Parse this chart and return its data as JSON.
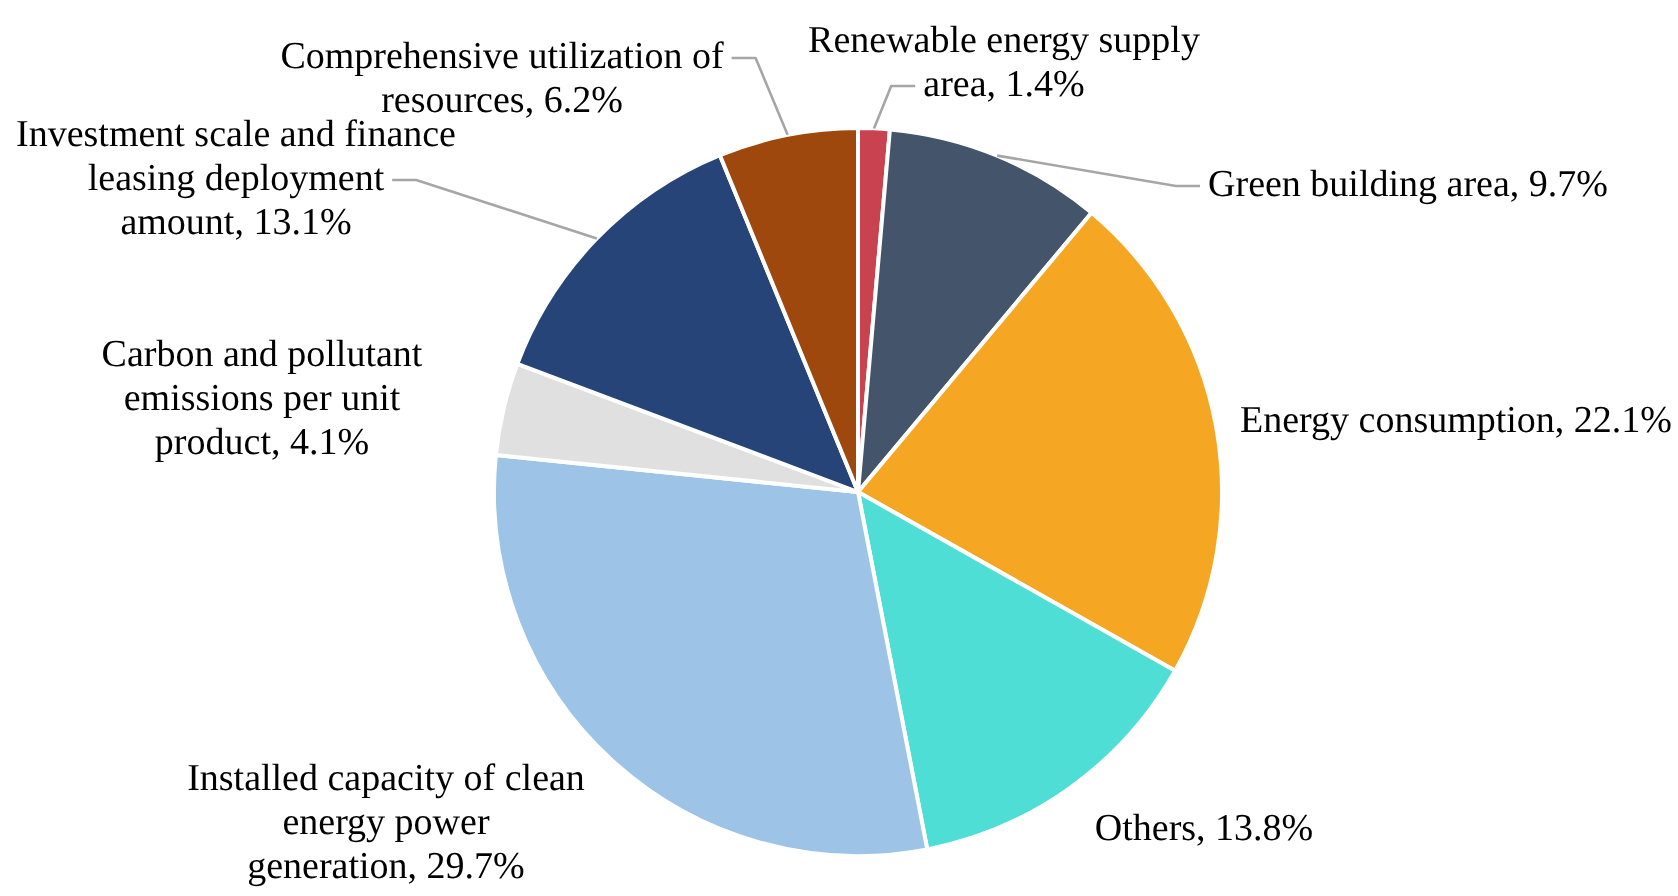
{
  "chart_data": {
    "type": "pie",
    "categories": [
      "Renewable energy supply area",
      "Green building area",
      "Energy consumption",
      "Others",
      "Installed capacity of clean energy power generation",
      "Carbon and pollutant emissions per unit product",
      "Investment scale and finance leasing deployment amount",
      "Comprehensive utilization of resources"
    ],
    "values": [
      1.4,
      9.7,
      22.1,
      13.8,
      29.7,
      4.1,
      13.1,
      6.2
    ],
    "colors": [
      "#c8424f",
      "#44546a",
      "#f5a623",
      "#4fded5",
      "#9dc3e6",
      "#e0e0e0",
      "#264478",
      "#9e480e"
    ],
    "value_labels": [
      "1.4%",
      "9.7%",
      "22.1%",
      "13.8%",
      "29.7%",
      "4.1%",
      "13.1%",
      "6.2%"
    ]
  }
}
